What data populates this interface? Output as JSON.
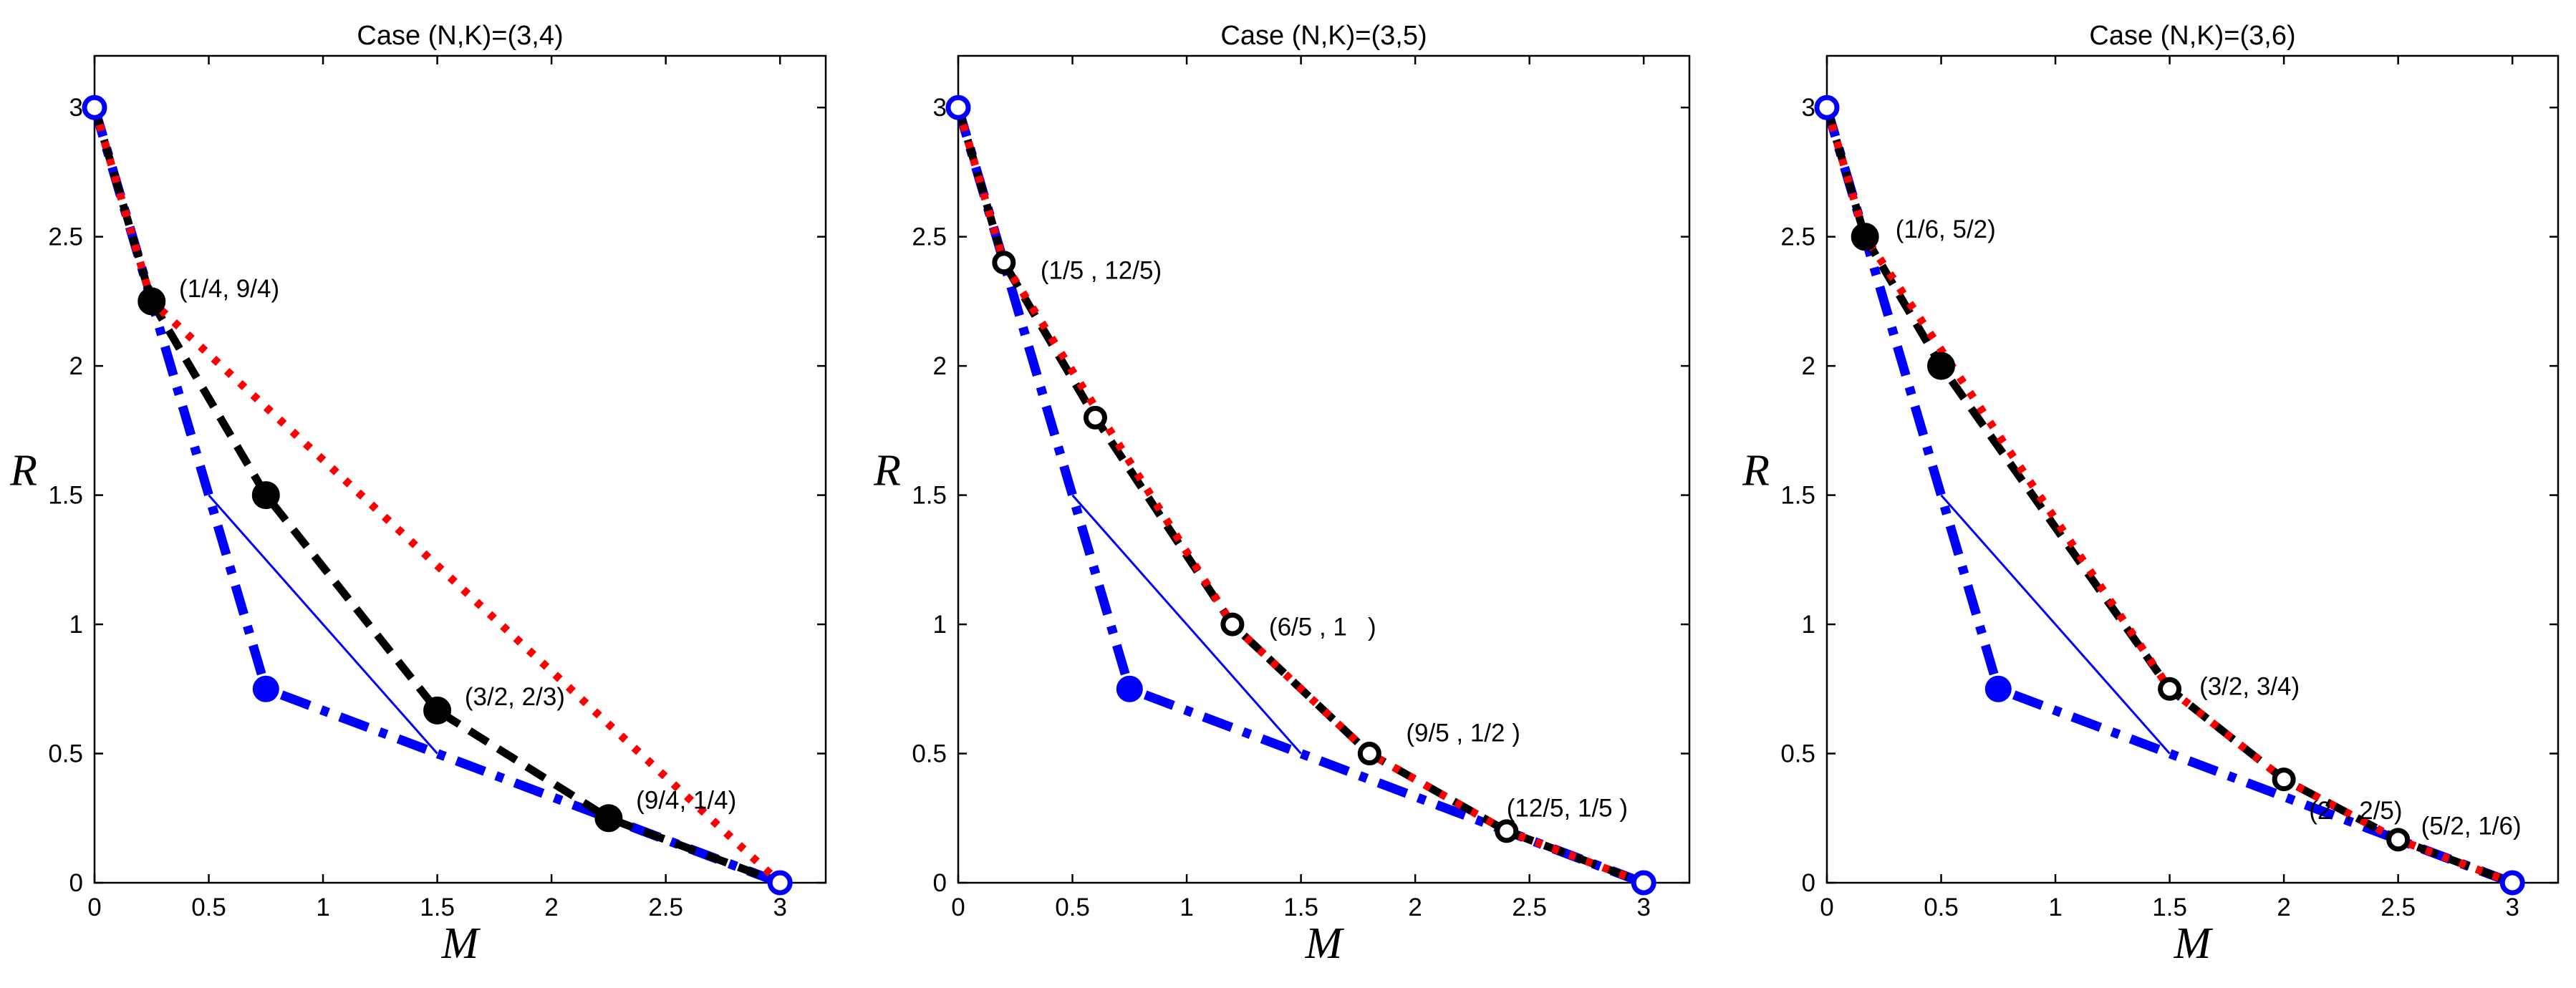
{
  "chart_data": [
    {
      "type": "line",
      "title": "Case (N,K)=(3,4)",
      "xlabel": "M",
      "ylabel": "R",
      "xlim": [
        0,
        3.2
      ],
      "ylim": [
        0,
        3.2
      ],
      "xticks": [
        0,
        0.5,
        1,
        1.5,
        2,
        2.5,
        3
      ],
      "yticks": [
        0,
        0.5,
        1,
        1.5,
        2,
        2.5,
        3
      ],
      "series": [
        {
          "name": "black-dashed",
          "color": "#000000",
          "style": "dashed",
          "marker": "filled",
          "x": [
            0,
            0.25,
            0.75,
            1.5,
            2.25,
            3
          ],
          "y": [
            3,
            2.25,
            1.5,
            0.6667,
            0.25,
            0
          ]
        },
        {
          "name": "red-dotted",
          "color": "#ff0000",
          "style": "dotted",
          "marker": "none",
          "x": [
            0,
            0.25,
            3
          ],
          "y": [
            3,
            2.25,
            0
          ]
        },
        {
          "name": "blue-thin",
          "color": "#0000ff",
          "style": "thin",
          "marker": "none",
          "x": [
            0.5,
            1.5
          ],
          "y": [
            1.5,
            0.5
          ]
        },
        {
          "name": "blue-dashdot",
          "color": "#0000ff",
          "style": "dashdot",
          "marker": "filled",
          "x": [
            0,
            0.75,
            3
          ],
          "y": [
            3,
            0.75,
            0
          ]
        }
      ],
      "annotations": [
        {
          "text": "(1/4, 9/4)",
          "x": 0.37,
          "y": 2.3
        },
        {
          "text": "(3/2, 2/3)",
          "x": 1.62,
          "y": 0.72
        },
        {
          "text": "(9/4, 1/4)",
          "x": 2.37,
          "y": 0.32
        }
      ]
    },
    {
      "type": "line",
      "title": "Case (N,K)=(3,5)",
      "xlabel": "M",
      "ylabel": "R",
      "xlim": [
        0,
        3.2
      ],
      "ylim": [
        0,
        3.2
      ],
      "xticks": [
        0,
        0.5,
        1,
        1.5,
        2,
        2.5,
        3
      ],
      "yticks": [
        0,
        0.5,
        1,
        1.5,
        2,
        2.5,
        3
      ],
      "series": [
        {
          "name": "black-dashed",
          "color": "#000000",
          "style": "dashed",
          "marker": "hollow",
          "x": [
            0,
            0.2,
            0.6,
            1.2,
            1.8,
            2.4,
            3
          ],
          "y": [
            3,
            2.4,
            1.8,
            1,
            0.5,
            0.2,
            0
          ]
        },
        {
          "name": "red-dotted",
          "color": "#ff0000",
          "style": "dotted",
          "marker": "none",
          "x": [
            0,
            0.2,
            1.2,
            1.8,
            2.4,
            3
          ],
          "y": [
            3,
            2.4,
            1,
            0.5,
            0.2,
            0
          ]
        },
        {
          "name": "blue-thin",
          "color": "#0000ff",
          "style": "thin",
          "marker": "none",
          "x": [
            0.5,
            1.5
          ],
          "y": [
            1.5,
            0.5
          ]
        },
        {
          "name": "blue-dashdot",
          "color": "#0000ff",
          "style": "dashdot",
          "marker": "filled",
          "x": [
            0,
            0.75,
            3
          ],
          "y": [
            3,
            0.75,
            0
          ]
        }
      ],
      "annotations": [
        {
          "text": "(1/5 , 12/5)",
          "x": 0.36,
          "y": 2.37
        },
        {
          "text": "(6/5 , 1   )",
          "x": 1.36,
          "y": 0.99
        },
        {
          "text": "(9/5 , 1/2 )",
          "x": 1.96,
          "y": 0.58
        },
        {
          "text": "(12/5, 1/5 )",
          "x": 2.4,
          "y": 0.29
        }
      ]
    },
    {
      "type": "line",
      "title": "Case (N,K)=(3,6)",
      "xlabel": "M",
      "ylabel": "R",
      "xlim": [
        0,
        3.2
      ],
      "ylim": [
        0,
        3.2
      ],
      "xticks": [
        0,
        0.5,
        1,
        1.5,
        2,
        2.5,
        3
      ],
      "yticks": [
        0,
        0.5,
        1,
        1.5,
        2,
        2.5,
        3
      ],
      "series": [
        {
          "name": "black-dashed",
          "color": "#000000",
          "style": "dashed",
          "marker": "mixed",
          "x": [
            0,
            0.1667,
            0.5,
            1.5,
            2,
            2.5,
            3
          ],
          "y": [
            3,
            2.5,
            2,
            0.75,
            0.4,
            0.1667,
            0
          ]
        },
        {
          "name": "red-dotted",
          "color": "#ff0000",
          "style": "dotted",
          "marker": "none",
          "x": [
            0,
            0.1667,
            1.5,
            2,
            2.5,
            3
          ],
          "y": [
            3,
            2.5,
            0.75,
            0.4,
            0.1667,
            0
          ]
        },
        {
          "name": "blue-thin",
          "color": "#0000ff",
          "style": "thin",
          "marker": "none",
          "x": [
            0.5,
            1.5
          ],
          "y": [
            1.5,
            0.5
          ]
        },
        {
          "name": "blue-dashdot",
          "color": "#0000ff",
          "style": "dashdot",
          "marker": "filled",
          "x": [
            0,
            0.75,
            3
          ],
          "y": [
            3,
            0.75,
            0
          ]
        }
      ],
      "annotations": [
        {
          "text": "(1/6, 5/2)",
          "x": 0.3,
          "y": 2.53
        },
        {
          "text": "(3/2, 3/4)",
          "x": 1.63,
          "y": 0.76
        },
        {
          "text": "(2  , 2/5)",
          "x": 2.11,
          "y": 0.28
        },
        {
          "text": "(5/2, 1/6)",
          "x": 2.6,
          "y": 0.22
        }
      ]
    }
  ]
}
